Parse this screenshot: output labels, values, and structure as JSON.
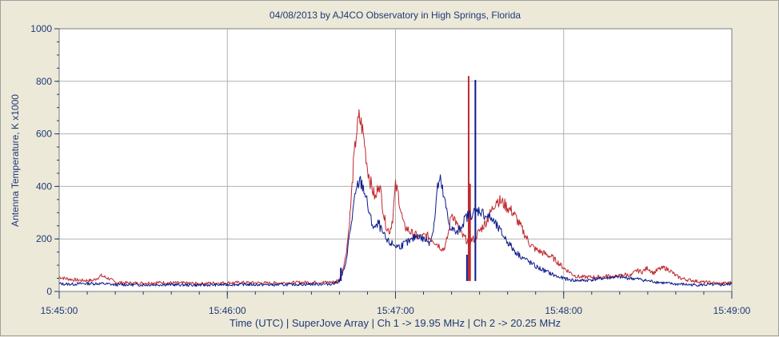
{
  "chart_data": {
    "type": "line",
    "title": "04/08/2013  by  AJ4CO Observatory  in  High Springs, Florida",
    "xlabel": "Time (UTC)  |  SuperJove Array  |  Ch 1 -> 19.95 MHz  |  Ch 2 -> 20.25 MHz",
    "ylabel": "Antenna Temperature, K x1000",
    "x_ticks": [
      "15:45:00",
      "15:46:00",
      "15:47:00",
      "15:48:00",
      "15:49:00"
    ],
    "y_ticks": [
      "0",
      "200",
      "400",
      "600",
      "800",
      "1000"
    ],
    "xlim_seconds": [
      0,
      240
    ],
    "ylim": [
      0,
      1000
    ],
    "grid": true,
    "colors": {
      "ch1": "#c0282d",
      "ch2": "#0a1a8c",
      "axis": "#1f3a78",
      "plot_bg": "#ffffff",
      "grid": "#b0b0b0"
    },
    "series": [
      {
        "key": "ch1",
        "x": [
          0,
          2,
          5,
          8,
          12,
          15,
          18,
          20,
          22,
          25,
          30,
          35,
          40,
          45,
          50,
          55,
          60,
          65,
          70,
          75,
          80,
          85,
          90,
          95,
          98,
          100,
          102,
          103,
          104,
          105,
          106,
          107,
          108,
          109,
          110,
          111,
          112,
          113,
          114,
          115,
          116,
          117,
          118,
          119,
          120,
          121,
          122,
          123,
          124,
          125,
          126,
          127,
          128,
          129,
          130,
          131,
          132,
          133,
          134,
          135,
          136,
          137,
          138,
          139,
          140,
          141,
          142,
          143,
          144,
          145,
          146,
          148,
          150,
          152,
          154,
          156,
          158,
          160,
          162,
          164,
          166,
          168,
          170,
          172,
          174,
          176,
          178,
          180,
          182,
          184,
          186,
          188,
          190,
          192,
          194,
          196,
          198,
          200,
          202,
          204,
          206,
          208,
          210,
          212,
          214,
          216,
          218,
          220,
          222,
          224,
          226,
          228,
          230,
          232,
          234,
          236,
          238,
          240
        ],
        "y": [
          55,
          50,
          45,
          42,
          42,
          60,
          48,
          35,
          34,
          32,
          32,
          34,
          33,
          32,
          30,
          32,
          33,
          34,
          33,
          32,
          33,
          34,
          35,
          35,
          36,
          45,
          120,
          200,
          320,
          480,
          600,
          660,
          630,
          560,
          470,
          420,
          380,
          350,
          420,
          360,
          280,
          240,
          230,
          280,
          400,
          370,
          300,
          250,
          240,
          230,
          220,
          215,
          210,
          205,
          210,
          215,
          205,
          200,
          190,
          180,
          170,
          160,
          180,
          230,
          300,
          280,
          250,
          230,
          210,
          200,
          190,
          200,
          230,
          260,
          300,
          350,
          340,
          320,
          300,
          260,
          220,
          180,
          160,
          150,
          140,
          130,
          110,
          90,
          75,
          60,
          55,
          55,
          55,
          55,
          55,
          60,
          55,
          60,
          65,
          60,
          80,
          75,
          90,
          70,
          85,
          90,
          80,
          60,
          50,
          45,
          42,
          38,
          35,
          35,
          32,
          30,
          32,
          35
        ],
        "spikes": [
          {
            "x": 146.1,
            "y": 820
          },
          {
            "x": 146.6,
            "y": 410
          }
        ]
      },
      {
        "key": "ch2",
        "x": [
          0,
          2,
          5,
          8,
          12,
          15,
          18,
          20,
          22,
          25,
          30,
          35,
          40,
          45,
          50,
          55,
          60,
          65,
          70,
          75,
          80,
          85,
          90,
          95,
          98,
          100,
          102,
          103,
          104,
          105,
          106,
          107,
          108,
          109,
          110,
          111,
          112,
          113,
          114,
          115,
          116,
          117,
          118,
          119,
          120,
          121,
          122,
          123,
          124,
          125,
          126,
          127,
          128,
          129,
          130,
          131,
          132,
          133,
          134,
          135,
          136,
          137,
          138,
          139,
          140,
          141,
          142,
          143,
          144,
          145,
          146,
          148,
          150,
          152,
          154,
          156,
          158,
          160,
          162,
          164,
          166,
          168,
          170,
          172,
          174,
          176,
          178,
          180,
          182,
          184,
          186,
          188,
          190,
          192,
          194,
          196,
          198,
          200,
          202,
          204,
          206,
          208,
          210,
          212,
          214,
          216,
          218,
          220,
          222,
          224,
          226,
          228,
          230,
          232,
          234,
          236,
          238,
          240
        ],
        "y": [
          30,
          28,
          28,
          30,
          30,
          30,
          28,
          25,
          26,
          26,
          25,
          26,
          26,
          25,
          24,
          25,
          26,
          27,
          26,
          25,
          26,
          27,
          28,
          28,
          30,
          40,
          90,
          170,
          240,
          320,
          380,
          420,
          410,
          380,
          330,
          280,
          250,
          240,
          260,
          230,
          210,
          190,
          185,
          180,
          175,
          170,
          175,
          180,
          185,
          190,
          195,
          210,
          215,
          205,
          200,
          195,
          190,
          210,
          280,
          400,
          420,
          370,
          320,
          260,
          240,
          230,
          220,
          240,
          260,
          280,
          290,
          300,
          310,
          290,
          280,
          250,
          220,
          190,
          160,
          140,
          125,
          110,
          95,
          85,
          75,
          65,
          55,
          50,
          45,
          42,
          42,
          42,
          45,
          48,
          50,
          52,
          55,
          55,
          52,
          50,
          48,
          45,
          40,
          38,
          35,
          32,
          30,
          28,
          28,
          26,
          25,
          25,
          25,
          26,
          25,
          25,
          26,
          28
        ],
        "spikes": [
          {
            "x": 148.5,
            "y": 805
          },
          {
            "x": 145.5,
            "y": 140
          },
          {
            "x": 100.5,
            "y": 90
          }
        ]
      }
    ]
  }
}
